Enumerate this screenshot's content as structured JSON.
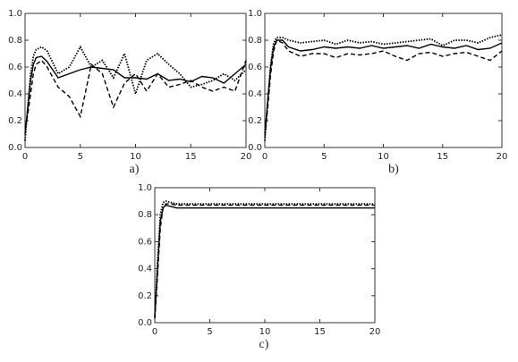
{
  "chart_data": [
    {
      "type": "line",
      "caption": "a)",
      "x": [
        0,
        0.25,
        0.5,
        0.75,
        1,
        1.5,
        2,
        3,
        4,
        5,
        6,
        7,
        8,
        9,
        10,
        11,
        12,
        13,
        14,
        15,
        16,
        17,
        18,
        19,
        20
      ],
      "series": [
        {
          "color": "#000000",
          "dash": "solid",
          "values": [
            0.1,
            0.3,
            0.5,
            0.62,
            0.67,
            0.68,
            0.64,
            0.52,
            0.55,
            0.58,
            0.6,
            0.59,
            0.58,
            0.52,
            0.52,
            0.51,
            0.55,
            0.5,
            0.51,
            0.49,
            0.53,
            0.52,
            0.48,
            0.55,
            0.62
          ]
        },
        {
          "color": "#000000",
          "dash": "dashed",
          "values": [
            0.15,
            0.25,
            0.4,
            0.55,
            0.62,
            0.65,
            0.6,
            0.45,
            0.38,
            0.23,
            0.62,
            0.55,
            0.3,
            0.48,
            0.55,
            0.42,
            0.55,
            0.45,
            0.47,
            0.5,
            0.45,
            0.42,
            0.45,
            0.42,
            0.65
          ]
        },
        {
          "color": "#000000",
          "dash": "dotted",
          "values": [
            0.05,
            0.3,
            0.55,
            0.68,
            0.73,
            0.75,
            0.72,
            0.55,
            0.6,
            0.75,
            0.6,
            0.65,
            0.52,
            0.7,
            0.4,
            0.65,
            0.7,
            0.62,
            0.55,
            0.45,
            0.47,
            0.5,
            0.55,
            0.5,
            0.58
          ]
        }
      ],
      "xlim": [
        0,
        20
      ],
      "xticks": [
        0,
        5,
        10,
        15,
        20
      ],
      "ylim": [
        0,
        1
      ],
      "yticks": [
        {
          "value": 0,
          "label": "0.0"
        },
        0.2,
        0.4,
        0.6,
        0.8,
        {
          "value": 1,
          "label": "1.0"
        }
      ]
    },
    {
      "type": "line",
      "caption": "b)",
      "x": [
        0,
        0.25,
        0.5,
        0.75,
        1,
        1.5,
        2,
        3,
        4,
        5,
        6,
        7,
        8,
        9,
        10,
        11,
        12,
        13,
        14,
        15,
        16,
        17,
        18,
        19,
        20
      ],
      "series": [
        {
          "color": "#000000",
          "dash": "solid",
          "values": [
            0.1,
            0.35,
            0.6,
            0.75,
            0.8,
            0.8,
            0.75,
            0.72,
            0.73,
            0.75,
            0.74,
            0.75,
            0.74,
            0.76,
            0.74,
            0.75,
            0.76,
            0.74,
            0.77,
            0.75,
            0.74,
            0.76,
            0.73,
            0.74,
            0.78
          ]
        },
        {
          "color": "#000000",
          "dash": "dashed",
          "values": [
            0.08,
            0.3,
            0.55,
            0.72,
            0.8,
            0.78,
            0.72,
            0.68,
            0.7,
            0.7,
            0.67,
            0.7,
            0.69,
            0.7,
            0.72,
            0.68,
            0.65,
            0.7,
            0.71,
            0.68,
            0.7,
            0.71,
            0.68,
            0.65,
            0.72
          ]
        },
        {
          "color": "#000000",
          "dash": "dotted",
          "values": [
            0.05,
            0.35,
            0.62,
            0.78,
            0.82,
            0.82,
            0.8,
            0.78,
            0.79,
            0.8,
            0.77,
            0.8,
            0.78,
            0.79,
            0.77,
            0.78,
            0.79,
            0.8,
            0.81,
            0.76,
            0.8,
            0.8,
            0.78,
            0.82,
            0.84
          ]
        }
      ],
      "xlim": [
        0,
        20
      ],
      "xticks": [
        0,
        5,
        10,
        15,
        20
      ],
      "ylim": [
        0,
        1
      ],
      "yticks": [
        {
          "value": 0,
          "label": "0.0"
        },
        0.2,
        0.4,
        0.6,
        0.8,
        {
          "value": 1,
          "label": "1.0"
        }
      ]
    },
    {
      "type": "line",
      "caption": "c)",
      "x": [
        0,
        0.25,
        0.5,
        0.75,
        1,
        1.5,
        2,
        3,
        4,
        5,
        6,
        7,
        8,
        9,
        10,
        11,
        12,
        13,
        14,
        15,
        16,
        17,
        18,
        19,
        20
      ],
      "series": [
        {
          "color": "#000000",
          "dash": "solid",
          "values": [
            0.05,
            0.4,
            0.75,
            0.85,
            0.87,
            0.86,
            0.85,
            0.85,
            0.85,
            0.85,
            0.85,
            0.85,
            0.85,
            0.85,
            0.85,
            0.85,
            0.85,
            0.85,
            0.85,
            0.85,
            0.85,
            0.85,
            0.85,
            0.85,
            0.85
          ]
        },
        {
          "color": "#000000",
          "dash": "dashed",
          "values": [
            0.03,
            0.35,
            0.7,
            0.85,
            0.88,
            0.88,
            0.87,
            0.87,
            0.87,
            0.87,
            0.87,
            0.87,
            0.87,
            0.87,
            0.87,
            0.87,
            0.87,
            0.87,
            0.87,
            0.87,
            0.87,
            0.87,
            0.87,
            0.87,
            0.87
          ]
        },
        {
          "color": "#000000",
          "dash": "dotted",
          "values": [
            0.04,
            0.45,
            0.8,
            0.89,
            0.9,
            0.89,
            0.88,
            0.88,
            0.88,
            0.88,
            0.88,
            0.88,
            0.88,
            0.88,
            0.88,
            0.88,
            0.88,
            0.88,
            0.88,
            0.88,
            0.88,
            0.88,
            0.88,
            0.88,
            0.88
          ]
        }
      ],
      "xlim": [
        0,
        20
      ],
      "xticks": [
        0,
        5,
        10,
        15,
        20
      ],
      "ylim": [
        0,
        1
      ],
      "yticks": [
        {
          "value": 0,
          "label": "0.0"
        },
        0.2,
        0.4,
        0.6,
        0.8,
        {
          "value": 1,
          "label": "1.0"
        }
      ]
    }
  ]
}
